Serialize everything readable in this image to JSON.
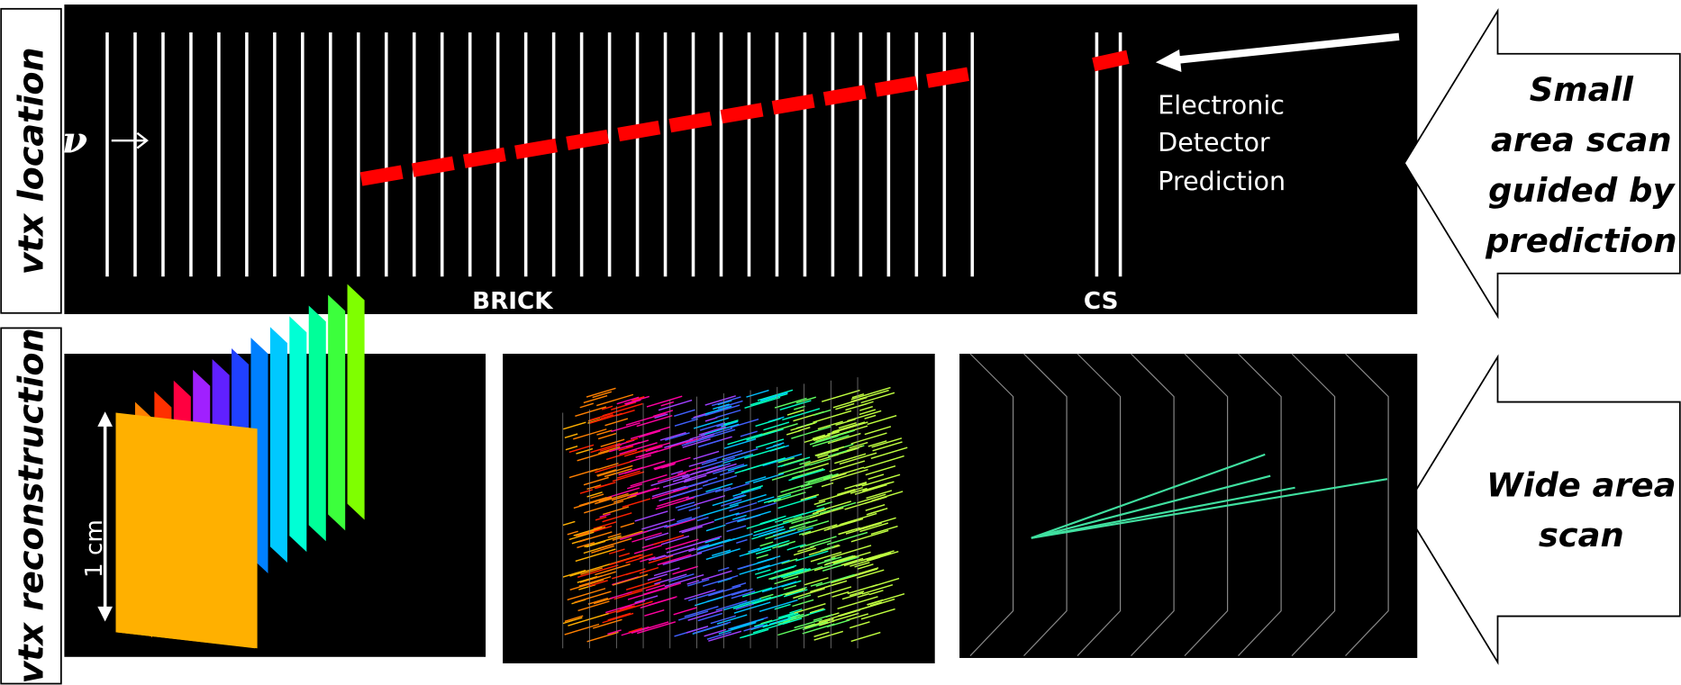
{
  "side_labels": [
    "vtx location",
    "vtx reconstruction"
  ],
  "top_panel": {
    "neutrino": "ν",
    "prediction": [
      "Electronic",
      "Detector",
      "Prediction"
    ],
    "brick": "BRICK",
    "cs": "CS"
  },
  "scale_bar": "1 cm",
  "arrows": [
    {
      "lines": [
        "Small",
        "area scan",
        "guided by",
        "prediction"
      ]
    },
    {
      "lines": [
        "Wide area",
        "scan"
      ]
    }
  ]
}
